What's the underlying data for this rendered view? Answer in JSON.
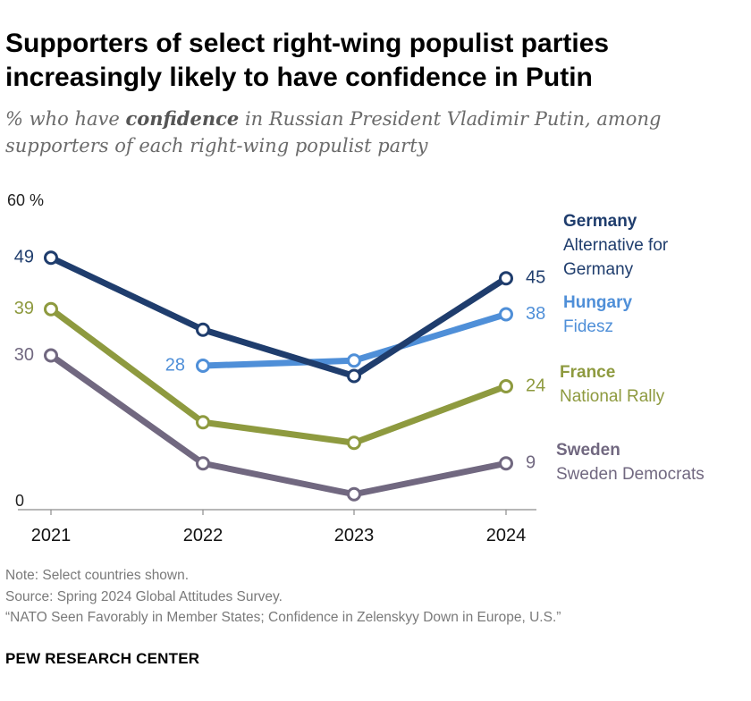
{
  "header": {
    "title": "Supporters of select right-wing populist parties increasingly likely to have confidence in Putin",
    "subtitle_pre": "% who have ",
    "subtitle_em": "confidence",
    "subtitle_post": " in Russian President Vladimir Putin, among supporters of each right-wing populist party"
  },
  "chart_data": {
    "type": "line",
    "title": "Supporters of select right-wing populist parties increasingly likely to have confidence in Putin",
    "ylabel": "% who have confidence in Russian President Vladimir Putin",
    "x": [
      "2021",
      "2022",
      "2023",
      "2024"
    ],
    "ylim": [
      0,
      60
    ],
    "y_tick_labels": [
      "0",
      "60 %"
    ],
    "grid": false,
    "series": [
      {
        "name": "Germany",
        "party": "Alternative for Germany",
        "values": [
          49,
          35,
          26,
          45
        ],
        "color": "#1f3d6d",
        "start_label": "49",
        "end_label": "45",
        "label_color": "#1f3d6d"
      },
      {
        "name": "Hungary",
        "party": "Fidesz",
        "values": [
          null,
          28,
          29,
          38
        ],
        "color": "#4f8fd8",
        "start_label": "28",
        "end_label": "38",
        "label_color": "#4f8fd8"
      },
      {
        "name": "France",
        "party": "National Rally",
        "values": [
          39,
          17,
          13,
          24
        ],
        "color": "#8e9a3f",
        "start_label": "39",
        "end_label": "24",
        "label_color": "#8e9a3f"
      },
      {
        "name": "Sweden",
        "party": "Sweden Democrats",
        "values": [
          30,
          9,
          3,
          9
        ],
        "color": "#716880",
        "start_label": "30",
        "end_label": "9",
        "label_color": "#716880"
      }
    ]
  },
  "notes": {
    "note": "Note: Select countries shown.",
    "source": "Source: Spring 2024 Global Attitudes Survey.",
    "report": "“NATO Seen Favorably in Member States; Confidence in Zelenskyy Down in Europe, U.S.”"
  },
  "footer": {
    "org": "PEW RESEARCH CENTER"
  }
}
